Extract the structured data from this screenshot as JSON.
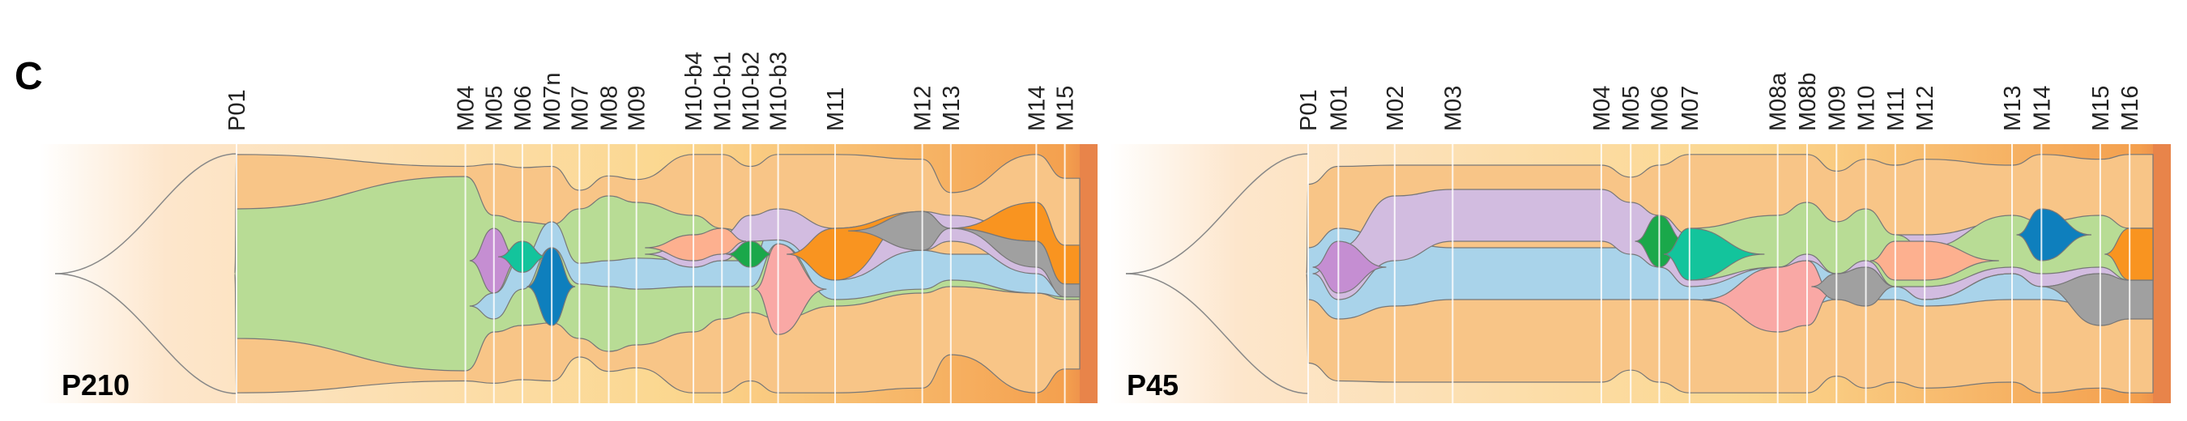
{
  "figure": {
    "panel_letter": "C"
  },
  "colors": {
    "bg_light": "#fde6cc",
    "bg_mid": "#fbd78f",
    "bg_dark": "#f4a04e",
    "edge": "#e8844a",
    "clone_colors": {
      "founder": "#f8c587",
      "green": "#b8dc95",
      "blue": "#a9d3ea",
      "lavender": "#d2bce0",
      "purple": "#c58ed2",
      "teal": "#13c49c",
      "dark_blue": "#0e7fbd",
      "dark_green": "#1aa84a",
      "salmon": "#fdb08f",
      "pink": "#f9a8a5",
      "orange": "#f99420",
      "gray": "#a0a0a0"
    }
  },
  "chart_data": [
    {
      "type": "area",
      "label": "P210",
      "timepoints": [
        "P01",
        "M04",
        "M05",
        "M06",
        "M07n",
        "M07",
        "M08",
        "M09",
        "M10-b4",
        "M10-b1",
        "M10-b2",
        "M10-b3",
        "M11",
        "M12",
        "M13",
        "M14",
        "M15"
      ],
      "timepoint_positions": [
        0,
        0.273,
        0.307,
        0.341,
        0.376,
        0.409,
        0.444,
        0.477,
        0.545,
        0.579,
        0.613,
        0.646,
        0.714,
        0.818,
        0.852,
        0.954,
        0.988
      ],
      "clones": [
        {
          "name": "founder",
          "color_key": "founder",
          "parent": null,
          "frac": [
            0.5,
            0.15,
            0.12,
            0.12,
            0.12,
            0.12,
            0.12,
            0.12,
            0.1,
            0.1,
            0.05,
            0.05,
            0.04,
            0.03,
            0.03,
            0.02,
            0.02
          ]
        },
        {
          "name": "green",
          "color_key": "green",
          "parent": "founder",
          "frac": [
            0.5,
            0.75,
            0.45,
            0.4,
            0.38,
            0.5,
            0.6,
            0.55,
            0.45,
            0.35,
            0.3,
            0.35,
            0.25,
            0.15,
            0.1,
            0.15,
            0.2
          ]
        },
        {
          "name": "purple",
          "color_key": "purple",
          "parent": "green",
          "frac": [
            0,
            0,
            0.25,
            0,
            0,
            0,
            0,
            0,
            0,
            0,
            0,
            0,
            0,
            0,
            0,
            0,
            0
          ]
        },
        {
          "name": "blue",
          "color_key": "blue",
          "parent": "green",
          "frac": [
            0,
            0,
            0.1,
            0.12,
            0.1,
            0.08,
            0.1,
            0.12,
            0.1,
            0.1,
            0.1,
            0.12,
            0.2,
            0.18,
            0.15,
            0.15,
            0.18
          ]
        },
        {
          "name": "teal",
          "color_key": "teal",
          "parent": "blue",
          "frac": [
            0,
            0,
            0,
            0.25,
            0,
            0,
            0,
            0,
            0,
            0,
            0,
            0,
            0,
            0,
            0,
            0,
            0
          ]
        },
        {
          "name": "dark_blue",
          "color_key": "dark_blue",
          "parent": "green",
          "frac": [
            0,
            0,
            0,
            0,
            0.3,
            0,
            0,
            0,
            0,
            0,
            0,
            0,
            0,
            0,
            0,
            0,
            0
          ]
        },
        {
          "name": "lavender",
          "color_key": "lavender",
          "parent": "blue",
          "frac": [
            0,
            0,
            0,
            0,
            0,
            0,
            0,
            0,
            0.25,
            0.3,
            0.2,
            0.15,
            0.35,
            0.45,
            0.4,
            0.3,
            0.2
          ]
        },
        {
          "name": "salmon",
          "color_key": "salmon",
          "parent": "lavender",
          "frac": [
            0,
            0,
            0,
            0,
            0,
            0,
            0,
            0,
            0.15,
            0.15,
            0,
            0,
            0,
            0,
            0,
            0,
            0
          ]
        },
        {
          "name": "dark_green",
          "color_key": "dark_green",
          "parent": "blue",
          "frac": [
            0,
            0,
            0,
            0,
            0,
            0,
            0,
            0,
            0,
            0,
            0.25,
            0,
            0,
            0,
            0,
            0,
            0
          ]
        },
        {
          "name": "pink",
          "color_key": "pink",
          "parent": "green",
          "frac": [
            0,
            0,
            0,
            0,
            0,
            0,
            0,
            0,
            0,
            0,
            0,
            0.35,
            0,
            0,
            0,
            0,
            0
          ]
        },
        {
          "name": "orange",
          "color_key": "orange",
          "parent": "lavender",
          "frac": [
            0,
            0,
            0,
            0,
            0,
            0,
            0,
            0,
            0,
            0,
            0,
            0,
            0.2,
            0,
            0,
            0.3,
            0.15
          ]
        },
        {
          "name": "gray",
          "color_key": "gray",
          "parent": "lavender",
          "frac": [
            0,
            0,
            0,
            0,
            0,
            0,
            0,
            0,
            0,
            0,
            0,
            0,
            0,
            0.15,
            0,
            0.1,
            0.05
          ]
        }
      ]
    },
    {
      "type": "area",
      "label": "P45",
      "timepoints": [
        "P01",
        "M01",
        "M02",
        "M03",
        "M04",
        "M05",
        "M06",
        "M07",
        "M08a",
        "M08b",
        "M09",
        "M10",
        "M11",
        "M12",
        "M13",
        "M14",
        "M15",
        "M16"
      ],
      "timepoint_positions": [
        0,
        0.036,
        0.103,
        0.172,
        0.349,
        0.384,
        0.418,
        0.454,
        0.559,
        0.594,
        0.629,
        0.664,
        0.699,
        0.734,
        0.838,
        0.873,
        0.943,
        0.978
      ],
      "clones": [
        {
          "name": "founder",
          "color_key": "founder",
          "parent": null,
          "frac": [
            0.55,
            0.1,
            0.06,
            0.06,
            0.06,
            0.06,
            0.06,
            0.06,
            0.06,
            0.06,
            0.06,
            0.06,
            0.06,
            0.06,
            0.06,
            0.06,
            0.06,
            0.06
          ]
        },
        {
          "name": "blue",
          "color_key": "blue",
          "parent": "founder",
          "frac": [
            0.2,
            0.35,
            0.25,
            0.2,
            0.2,
            0.2,
            0.2,
            0.2,
            0.3,
            0.25,
            0.2,
            0.2,
            0.2,
            0.25,
            0.2,
            0.2,
            0.25,
            0.2
          ]
        },
        {
          "name": "lavender",
          "color_key": "lavender",
          "parent": "blue",
          "frac": [
            0,
            0.2,
            0.6,
            0.65,
            0.65,
            0.55,
            0.45,
            0.3,
            0.2,
            0.2,
            0.3,
            0.3,
            0.3,
            0.3,
            0.4,
            0.3,
            0.2,
            0.2
          ]
        },
        {
          "name": "purple",
          "color_key": "purple",
          "parent": "lavender",
          "frac": [
            0,
            0.25,
            0,
            0,
            0,
            0,
            0,
            0,
            0,
            0,
            0,
            0,
            0,
            0,
            0,
            0,
            0,
            0
          ]
        },
        {
          "name": "green",
          "color_key": "green",
          "parent": "lavender",
          "frac": [
            0,
            0,
            0,
            0,
            0,
            0,
            0,
            0.25,
            0.2,
            0.25,
            0.2,
            0.25,
            0.2,
            0.15,
            0.25,
            0.3,
            0.25,
            0.2
          ]
        },
        {
          "name": "dark_green",
          "color_key": "dark_green",
          "parent": "lavender",
          "frac": [
            0,
            0,
            0,
            0,
            0,
            0,
            0.2,
            0,
            0,
            0,
            0,
            0,
            0,
            0,
            0,
            0,
            0,
            0
          ]
        },
        {
          "name": "teal",
          "color_key": "teal",
          "parent": "green",
          "frac": [
            0,
            0,
            0,
            0,
            0,
            0,
            0,
            0.2,
            0,
            0,
            0,
            0,
            0,
            0,
            0,
            0,
            0,
            0
          ]
        },
        {
          "name": "pink",
          "color_key": "pink",
          "parent": "blue",
          "frac": [
            0,
            0,
            0,
            0,
            0,
            0,
            0,
            0,
            0.25,
            0.3,
            0,
            0,
            0,
            0,
            0,
            0,
            0,
            0
          ]
        },
        {
          "name": "gray",
          "color_key": "gray",
          "parent": "blue",
          "frac": [
            0,
            0,
            0,
            0,
            0,
            0,
            0,
            0,
            0,
            0,
            0.1,
            0.15,
            0,
            0,
            0,
            0,
            0.2,
            0.15
          ]
        },
        {
          "name": "salmon",
          "color_key": "salmon",
          "parent": "green",
          "frac": [
            0,
            0,
            0,
            0,
            0,
            0,
            0,
            0,
            0,
            0,
            0,
            0,
            0.15,
            0.2,
            0,
            0,
            0,
            0
          ]
        },
        {
          "name": "dark_blue",
          "color_key": "dark_blue",
          "parent": "green",
          "frac": [
            0,
            0,
            0,
            0,
            0,
            0,
            0,
            0,
            0,
            0,
            0,
            0,
            0,
            0,
            0,
            0.3,
            0,
            0
          ]
        },
        {
          "name": "orange",
          "color_key": "orange",
          "parent": "green",
          "frac": [
            0,
            0,
            0,
            0,
            0,
            0,
            0,
            0,
            0,
            0,
            0,
            0,
            0,
            0,
            0,
            0,
            0,
            0.2
          ]
        }
      ]
    }
  ]
}
